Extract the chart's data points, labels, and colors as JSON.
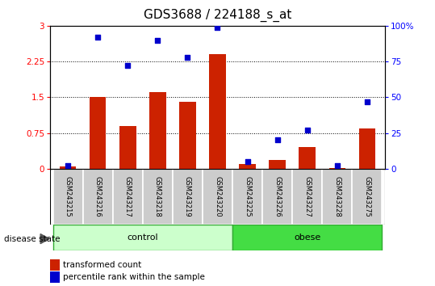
{
  "title": "GDS3688 / 224188_s_at",
  "samples": [
    "GSM243215",
    "GSM243216",
    "GSM243217",
    "GSM243218",
    "GSM243219",
    "GSM243220",
    "GSM243225",
    "GSM243226",
    "GSM243227",
    "GSM243228",
    "GSM243275"
  ],
  "transformed_count": [
    0.05,
    1.5,
    0.9,
    1.6,
    1.4,
    2.4,
    0.1,
    0.18,
    0.45,
    0.02,
    0.85
  ],
  "percentile_rank": [
    2,
    92,
    72,
    90,
    78,
    99,
    5,
    20,
    27,
    2,
    47
  ],
  "groups": [
    {
      "label": "control",
      "start": 0,
      "end": 5,
      "color": "#ccffcc",
      "edgecolor": "#33aa33"
    },
    {
      "label": "obese",
      "start": 6,
      "end": 10,
      "color": "#44dd44",
      "edgecolor": "#33aa33"
    }
  ],
  "left_ylim": [
    0,
    3
  ],
  "right_ylim": [
    0,
    100
  ],
  "left_yticks": [
    0,
    0.75,
    1.5,
    2.25,
    3
  ],
  "right_yticks": [
    0,
    25,
    50,
    75,
    100
  ],
  "right_yticklabels": [
    "0",
    "25",
    "50",
    "75",
    "100%"
  ],
  "grid_values": [
    0.75,
    1.5,
    2.25
  ],
  "bar_color": "#cc2200",
  "dot_color": "#0000cc",
  "bar_width": 0.55,
  "sample_box_color": "#cccccc",
  "label_transformed": "transformed count",
  "label_percentile": "percentile rank within the sample",
  "disease_state_label": "disease state",
  "title_fontsize": 11,
  "tick_fontsize": 7.5,
  "sample_fontsize": 6,
  "group_fontsize": 8,
  "legend_fontsize": 7.5
}
